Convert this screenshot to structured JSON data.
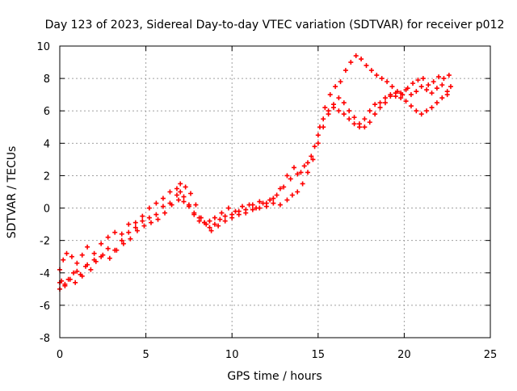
{
  "chart_data": {
    "type": "scatter",
    "title": "Day 123 of 2023, Sidereal Day-to-day VTEC variation (SDTVAR) for receiver p012",
    "xlabel": "GPS time / hours",
    "ylabel": "SDTVAR / TECUs",
    "xlim": [
      0,
      25
    ],
    "ylim": [
      -8,
      10
    ],
    "xticks": [
      0,
      5,
      10,
      15,
      20,
      25
    ],
    "xtick_labels": [
      "0",
      "5",
      "10",
      "15",
      "20",
      "25"
    ],
    "yticks": [
      -8,
      -6,
      -4,
      -2,
      0,
      2,
      4,
      6,
      8,
      10
    ],
    "ytick_labels": [
      "-8",
      "-6",
      "-4",
      "-2",
      "0",
      "2",
      "4",
      "6",
      "8",
      "10"
    ],
    "grid": true,
    "marker": "+",
    "colors": {
      "series": "#ff0000",
      "grid": "#a0a0a0",
      "axis": "#000000"
    },
    "series": [
      {
        "values_x": [
          0.0,
          0.1,
          0.3,
          0.5,
          0.8,
          1.0,
          1.3,
          1.6,
          2.0,
          2.4,
          2.8,
          3.2,
          3.6,
          4.0,
          4.4,
          4.8,
          5.2,
          5.6,
          6.0,
          6.4,
          6.8,
          7.0,
          7.2,
          7.5,
          7.8,
          8.1,
          8.4,
          8.7,
          9.0,
          9.3,
          9.6,
          10.0,
          10.4,
          10.8,
          11.2,
          11.6,
          12.0,
          12.4,
          12.8,
          13.2,
          13.5,
          13.8,
          14.1,
          14.4,
          14.7,
          15.0,
          15.3,
          15.6,
          15.9,
          16.2,
          16.5,
          16.8,
          17.1,
          17.4,
          17.7,
          18.0,
          18.3,
          18.6,
          18.9,
          19.2,
          19.5,
          19.8,
          20.1,
          20.4,
          20.7,
          21.0,
          21.3,
          21.6,
          21.9,
          22.2,
          22.5,
          22.7
        ],
        "values_y": [
          -4.6,
          -4.5,
          -4.8,
          -4.4,
          -4.0,
          -3.9,
          -4.2,
          -3.5,
          -3.2,
          -3.0,
          -2.5,
          -2.6,
          -2.0,
          -1.5,
          -1.2,
          -0.8,
          -0.6,
          -0.4,
          0.1,
          0.3,
          0.8,
          1.0,
          0.7,
          0.2,
          -0.4,
          -0.8,
          -0.9,
          -1.2,
          -1.0,
          -0.7,
          -0.5,
          -0.4,
          -0.2,
          -0.3,
          -0.1,
          0.0,
          0.1,
          0.3,
          0.2,
          0.5,
          0.8,
          1.0,
          1.5,
          2.2,
          3.0,
          4.5,
          5.5,
          6.0,
          6.2,
          6.0,
          5.8,
          5.5,
          5.2,
          5.0,
          5.5,
          6.0,
          6.4,
          6.5,
          6.8,
          7.0,
          6.9,
          7.1,
          7.3,
          7.0,
          7.2,
          7.5,
          7.3,
          7.1,
          7.4,
          7.6,
          7.2,
          7.5
        ]
      },
      {
        "values_x": [
          0.0,
          0.2,
          0.4,
          0.7,
          1.0,
          1.3,
          1.6,
          2.0,
          2.4,
          2.8,
          3.2,
          3.6,
          4.0,
          4.4,
          4.8,
          5.2,
          5.6,
          6.0,
          6.4,
          6.8,
          7.0,
          7.3,
          7.6,
          7.9,
          8.2,
          8.5,
          8.8,
          9.2,
          9.6,
          10.0,
          10.4,
          10.8,
          11.2,
          11.6,
          12.0,
          12.4,
          12.8,
          13.2,
          13.6,
          14.0,
          14.4,
          14.8,
          15.1,
          15.4,
          15.7,
          16.0,
          16.3,
          16.6,
          16.9,
          17.2,
          17.5,
          17.8,
          18.1,
          18.4,
          18.7,
          19.0,
          19.3,
          19.6,
          19.9,
          20.2,
          20.5,
          20.8,
          21.1,
          21.4,
          21.7,
          22.0,
          22.3,
          22.6
        ],
        "values_y": [
          -3.8,
          -3.2,
          -2.8,
          -3.0,
          -3.4,
          -2.9,
          -2.4,
          -2.8,
          -2.2,
          -1.8,
          -1.5,
          -1.6,
          -1.0,
          -0.9,
          -0.5,
          0.0,
          0.3,
          0.6,
          1.0,
          1.2,
          1.5,
          1.3,
          0.9,
          0.2,
          -0.6,
          -1.0,
          -1.4,
          -1.1,
          -0.8,
          -0.6,
          -0.4,
          -0.1,
          0.2,
          0.4,
          0.3,
          0.6,
          1.2,
          2.0,
          2.5,
          2.2,
          2.8,
          3.8,
          5.0,
          6.2,
          7.0,
          7.5,
          7.8,
          8.5,
          9.0,
          9.4,
          9.2,
          8.8,
          8.5,
          8.2,
          8.0,
          7.8,
          7.5,
          7.2,
          7.0,
          7.4,
          7.7,
          7.9,
          8.0,
          7.6,
          7.8,
          8.1,
          8.0,
          8.2
        ]
      },
      {
        "values_x": [
          0.0,
          0.3,
          0.6,
          0.9,
          1.2,
          1.5,
          1.8,
          2.1,
          2.5,
          2.9,
          3.3,
          3.7,
          4.1,
          4.5,
          4.9,
          5.3,
          5.7,
          6.1,
          6.5,
          6.9,
          7.2,
          7.5,
          7.8,
          8.1,
          8.4,
          8.7,
          9.0,
          9.4,
          9.8,
          10.2,
          10.6,
          11.0,
          11.4,
          11.8,
          12.2,
          12.6,
          13.0,
          13.4,
          13.8,
          14.2,
          14.6,
          15.0,
          15.3,
          15.6,
          15.9,
          16.2,
          16.5,
          16.8,
          17.1,
          17.4,
          17.7,
          18.0,
          18.3,
          18.6,
          18.9,
          19.2,
          19.5,
          19.8,
          20.1,
          20.4,
          20.7,
          21.0,
          21.3,
          21.6,
          21.9,
          22.2,
          22.5
        ],
        "values_y": [
          -5.0,
          -4.7,
          -4.4,
          -4.6,
          -4.1,
          -3.6,
          -3.8,
          -3.3,
          -2.9,
          -3.1,
          -2.6,
          -2.2,
          -1.9,
          -1.4,
          -1.1,
          -0.9,
          -0.7,
          -0.3,
          0.2,
          0.5,
          0.4,
          0.1,
          -0.3,
          -0.6,
          -0.9,
          -0.8,
          -0.6,
          -0.3,
          0.0,
          -0.2,
          0.1,
          0.2,
          0.0,
          0.3,
          0.5,
          0.8,
          1.3,
          1.8,
          2.1,
          2.6,
          3.2,
          4.0,
          5.0,
          5.8,
          6.4,
          6.8,
          6.5,
          6.0,
          5.6,
          5.2,
          5.0,
          5.3,
          5.8,
          6.2,
          6.5,
          6.9,
          7.1,
          6.8,
          6.6,
          6.3,
          6.0,
          5.8,
          6.0,
          6.2,
          6.5,
          6.8,
          7.0
        ]
      }
    ]
  }
}
